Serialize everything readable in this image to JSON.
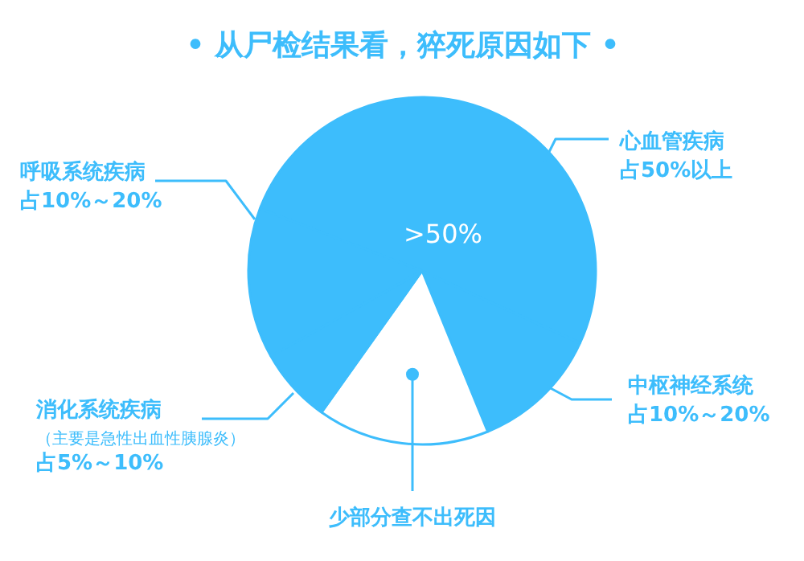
{
  "chart_data": {
    "type": "pie",
    "title": "• 从尸检结果看，猝死原因如下 •",
    "categories": [
      "心血管疾病",
      "中枢神经系统",
      "少部分查不出死因",
      "消化系统疾病",
      "呼吸系统疾病"
    ],
    "values": [
      51,
      12,
      16,
      7,
      14
    ],
    "colors": [
      "#3dbdfc",
      "#3dbdfc",
      "#ffffff",
      "#3dbdfc",
      "#3dbdfc"
    ],
    "annotations": [
      {
        "text": ">50%",
        "x": "心血管疾病"
      },
      {
        "text": "占50%以上",
        "x": "心血管疾病"
      },
      {
        "text": "占10%～20%",
        "x": "中枢神经系统"
      },
      {
        "text": "（主要是急性出血性胰腺炎）",
        "x": "消化系统疾病"
      },
      {
        "text": "占5%～10%",
        "x": "消化系统疾病"
      },
      {
        "text": "占10%～20%",
        "x": "呼吸系统疾病"
      }
    ]
  }
}
